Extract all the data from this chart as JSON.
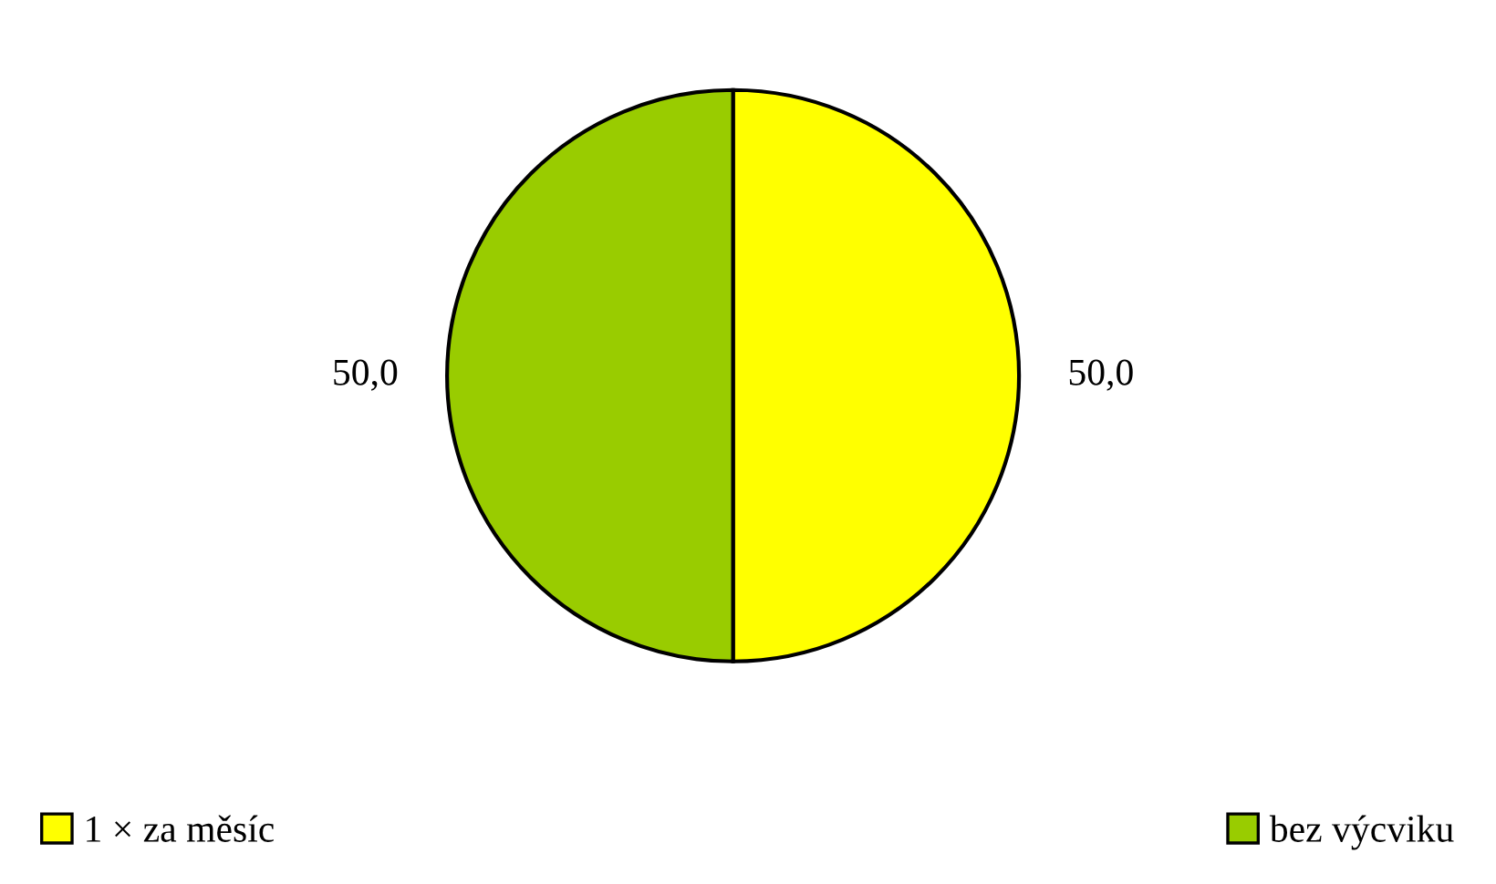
{
  "chart_data": {
    "type": "pie",
    "categories": [
      "1 × za měsíc",
      "bez výcviku"
    ],
    "values": [
      50,
      50
    ],
    "value_labels": [
      "50,0",
      "50,0"
    ],
    "colors": [
      "#ffff00",
      "#99cc00"
    ],
    "legend": "bottom"
  }
}
